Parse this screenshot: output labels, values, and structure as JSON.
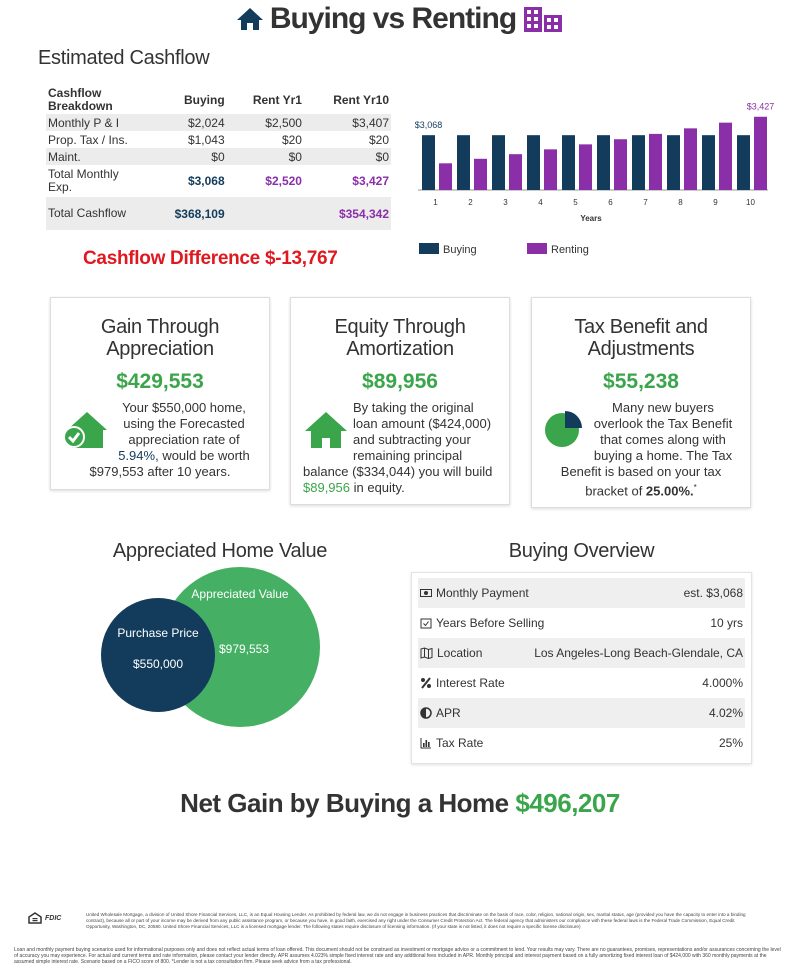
{
  "header": {
    "title": "Buying vs Renting"
  },
  "cashflow": {
    "title": "Estimated Cashflow",
    "table": {
      "headers": [
        "Cashflow Breakdown",
        "Buying",
        "Rent Yr1",
        "Rent Yr10"
      ],
      "rows": [
        [
          "Monthly P & I",
          "$2,024",
          "$2,500",
          "$3,407"
        ],
        [
          "Prop. Tax / Ins.",
          "$1,043",
          "$20",
          "$20"
        ],
        [
          "Maint.",
          "$0",
          "$0",
          "$0"
        ],
        [
          "Total Monthly Exp.",
          "$3,068",
          "$2,520",
          "$3,427"
        ],
        [
          "Total Cashflow",
          "$368,109",
          null,
          "$354,342"
        ]
      ]
    },
    "difference_label": "Cashflow Difference",
    "difference_value": "$-13,767"
  },
  "chart_data": {
    "type": "bar",
    "x": [
      1,
      2,
      3,
      4,
      5,
      6,
      7,
      8,
      9,
      10
    ],
    "xlim": [
      0.5,
      10.5
    ],
    "x_label": "Years",
    "ylim": [
      2000,
      3500
    ],
    "legend": "bottom",
    "series": [
      {
        "name": "Buying",
        "color": "#133c5c",
        "values": [
          3068,
          3068,
          3068,
          3068,
          3068,
          3068,
          3068,
          3068,
          3068,
          3068
        ],
        "value_labels": [
          "$3,068",
          null,
          null,
          null,
          null,
          null,
          null,
          null,
          null,
          null
        ]
      },
      {
        "name": "Renting",
        "color": "#8a2fa8",
        "values": [
          2520,
          2608,
          2698,
          2792,
          2889,
          2989,
          3093,
          3201,
          3312,
          3427
        ],
        "value_labels": [
          null,
          null,
          null,
          null,
          null,
          null,
          null,
          null,
          null,
          "$3,427"
        ]
      }
    ]
  },
  "cards": [
    {
      "title": "Gain Through Appreciation",
      "amount": "$429,553",
      "text": [
        "Your $550,000 home, using the Forecasted appreciation rate of ",
        "5.94%",
        ", would be worth $979,553 after 10 years."
      ]
    },
    {
      "title": "Equity Through Amortization",
      "amount": "$89,956",
      "text": [
        "By taking the original loan amount ($424,000) and subtracting your remaining principal balance ($334,044) you will build ",
        "$89,956",
        " in equity."
      ]
    },
    {
      "title": "Tax Benefit and Adjustments",
      "amount": "$55,238",
      "text": [
        "Many new buyers overlook the Tax Benefit that comes along with buying a home. The Tax Benefit is based on your tax bracket of ",
        "25.00%",
        ".",
        "*"
      ]
    }
  ],
  "home_value": {
    "title": "Appreciated Home Value",
    "appreciated_label": "Appreciated Value",
    "appreciated_value": "$979,553",
    "purchase_label": "Purchase Price",
    "purchase_value": "$550,000"
  },
  "overview": {
    "title": "Buying Overview",
    "rows": [
      {
        "label": "Monthly Payment",
        "value": "est. $3,068"
      },
      {
        "label": "Years Before Selling",
        "value": "10 yrs"
      },
      {
        "label": "Location",
        "value": "Los Angeles-Long Beach-Glendale, CA"
      },
      {
        "label": "Interest Rate",
        "value": "4.000%"
      },
      {
        "label": "APR",
        "value": "4.02%"
      },
      {
        "label": "Tax Rate",
        "value": "25%"
      }
    ]
  },
  "net_gain": {
    "label": "Net Gain by Buying a Home",
    "value": "$496,207"
  },
  "footer": {
    "badge": "FDIC",
    "disclosure": "United Wholesale Mortgage, a division of United Shore Financial Services, LLC, is an Equal Housing Lender. As prohibited by federal law, we do not engage in business practices that discriminate on the basis of race, color, religion, national origin, sex, marital status, age (provided you have the capacity to enter into a binding contract), because all or part of your income may be derived from any public assistance program, or because you have, in good faith, exercised any right under the Consumer Credit Protection Act. The federal agency that administers our compliance with these federal laws is the Federal Trade Commission, Equal Credit Opportunity, Washington, DC, 20580. United Shore Financial Services, LLC is a licensed mortgage lender. The following states require disclosure of licensing information. (If your state is not listed, it does not require a specific license disclosure)",
    "note": "Loan and monthly payment buying scenarios used for informational purposes only and does not reflect actual terms of loan offered. This document should not be construed as investment or mortgage advice or a commitment to lend. Your results may vary. There are no guarantees, promises, representations and/or assurances concerning the level of accuracy you may experience. For actual and current terms and rate information, please contact your lender directly. APR assumes 4.023% simple fixed interest rate and any additional fees included in APR. Monthly principal and interest payment based on a fully amortizing fixed interest loan of $424,000 with 360 monthly payments at the assumed simple interest rate. Scenario based on a FICO score of 800. *Lender is not a tax consultation firm. Please seek advice from a tax professional."
  }
}
